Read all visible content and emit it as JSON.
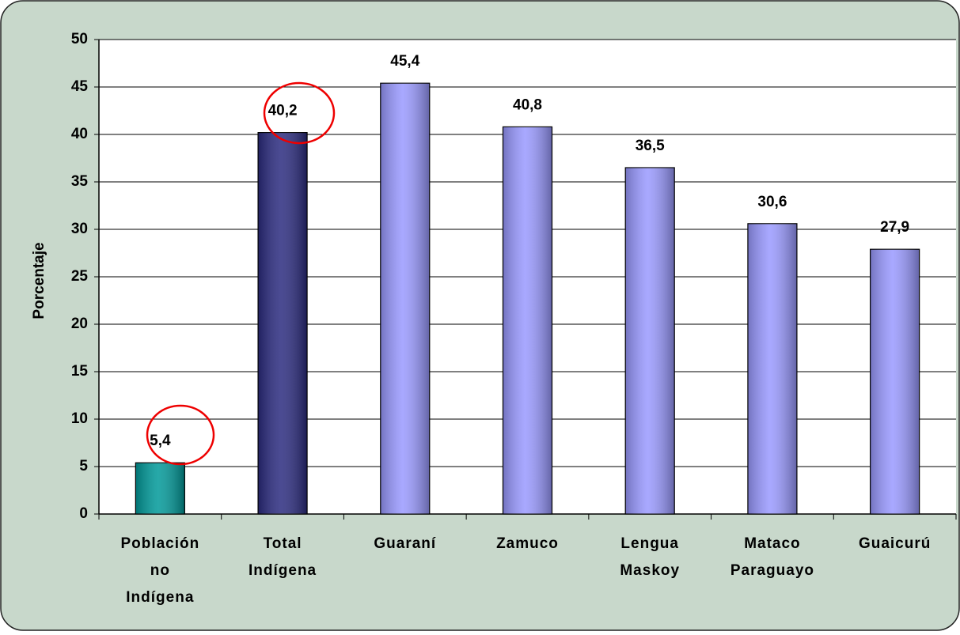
{
  "chart_data": {
    "type": "bar",
    "y_label": "Porcentaje",
    "categories": [
      [
        "Población",
        "no",
        "Indígena"
      ],
      [
        "Total",
        "Indígena"
      ],
      [
        "Guaraní"
      ],
      [
        "Zamuco"
      ],
      [
        "Lengua",
        "Maskoy"
      ],
      [
        "Mataco",
        "Paraguayo"
      ],
      [
        "Guaicurú"
      ]
    ],
    "values": [
      5.4,
      40.2,
      45.4,
      40.8,
      36.5,
      30.6,
      27.9
    ],
    "value_labels": [
      "5,4",
      "40,2",
      "45,4",
      "40,8",
      "36,5",
      "30,6",
      "27,9"
    ],
    "colors": [
      "#009999",
      "#2b2b7f",
      "#9999ff",
      "#9999ff",
      "#9999ff",
      "#9999ff",
      "#9999ff"
    ],
    "ylim": [
      0,
      50
    ],
    "yticks": [
      0,
      5,
      10,
      15,
      20,
      25,
      30,
      35,
      40,
      45,
      50
    ],
    "grid": true
  }
}
